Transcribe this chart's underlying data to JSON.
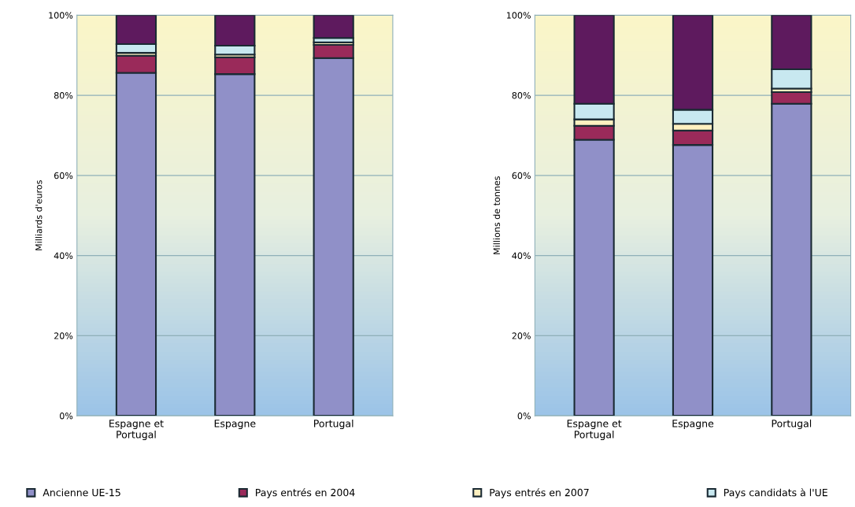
{
  "chart_data": [
    {
      "type": "bar",
      "stacked": true,
      "ylabel": "Milliards d'euros",
      "categories": [
        "Espagne et\nPortugal",
        "Espagne",
        "Portugal"
      ],
      "series": [
        {
          "name": "Ancienne UE-15",
          "color": "#9090c8",
          "values": [
            85.6,
            85.3,
            89.3
          ]
        },
        {
          "name": "Pays entrés en 2004",
          "color": "#9a2a5a",
          "values": [
            4.3,
            4.2,
            3.3
          ]
        },
        {
          "name": "Pays entrés en 2007",
          "color": "#fff0c0",
          "values": [
            0.7,
            0.7,
            0.6
          ]
        },
        {
          "name": "Pays candidats à l'UE",
          "color": "#c8e8f0",
          "values": [
            2.2,
            2.2,
            1.1
          ]
        },
        {
          "color": "#5e1a5e",
          "values": [
            7.2,
            7.6,
            5.7
          ]
        }
      ],
      "ylim": [
        0,
        100
      ],
      "yticks": [
        {
          "value": 0,
          "label": "0%"
        },
        {
          "value": 20,
          "label": "20%"
        },
        {
          "value": 40,
          "label": "40%"
        },
        {
          "value": 60,
          "label": "60%"
        },
        {
          "value": 80,
          "label": "80%"
        },
        {
          "value": 100,
          "label": "100%"
        }
      ],
      "grid": "y",
      "legend": "bottom"
    },
    {
      "type": "bar",
      "stacked": true,
      "ylabel": "Millions de tonnes",
      "categories": [
        "Espagne et\nPortugal",
        "Espagne",
        "Portugal"
      ],
      "series": [
        {
          "color": "#9090c8",
          "values": [
            68.9,
            67.6,
            77.9
          ]
        },
        {
          "color": "#9a2a5a",
          "values": [
            3.5,
            3.6,
            2.9
          ]
        },
        {
          "color": "#fff0c0",
          "values": [
            1.6,
            1.7,
            0.9
          ]
        },
        {
          "color": "#c8e8f0",
          "values": [
            3.9,
            3.5,
            4.8
          ]
        },
        {
          "color": "#5e1a5e",
          "values": [
            22.1,
            23.6,
            13.5
          ]
        }
      ],
      "ylim": [
        0,
        100
      ],
      "yticks": [
        {
          "value": 0,
          "label": "0%"
        },
        {
          "value": 20,
          "label": "20%"
        },
        {
          "value": 40,
          "label": "40%"
        },
        {
          "value": 60,
          "label": "60%"
        },
        {
          "value": 80,
          "label": "80%"
        },
        {
          "value": 100,
          "label": "100%"
        }
      ],
      "grid": "y"
    }
  ]
}
